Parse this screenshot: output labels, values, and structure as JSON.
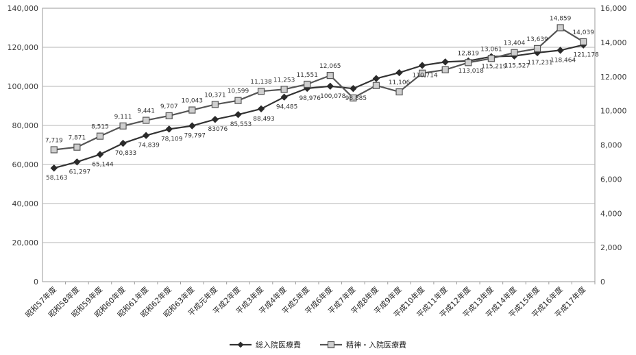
{
  "chart_data": {
    "type": "line",
    "title": "",
    "xlabel": "",
    "ylabel": "",
    "categories": [
      "昭和57年度",
      "昭和58年度",
      "昭和59年度",
      "昭和60年度",
      "昭和61年度",
      "昭和62年度",
      "昭和63年度",
      "平成元年度",
      "平成2年度",
      "平成3年度",
      "平成4年度",
      "平成5年度",
      "平成6年度",
      "平成7年度",
      "平成8年度",
      "平成9年度",
      "平成10年度",
      "平成11年度",
      "平成12年度",
      "平成13年度",
      "平成14年度",
      "平成15年度",
      "平成16年度",
      "平成17年度"
    ],
    "ylim_left": [
      0,
      140000
    ],
    "ylim_right": [
      0,
      16000
    ],
    "yticks_left": [
      "0",
      "20,000",
      "40,000",
      "60,000",
      "80,000",
      "100,000",
      "120,000",
      "140,000"
    ],
    "yticks_right": [
      "0",
      "2,000",
      "4,000",
      "6,000",
      "8,000",
      "10,000",
      "12,000",
      "14,000",
      "16,000"
    ],
    "grid": true,
    "legend_position": "bottom",
    "series": [
      {
        "name": "総入院医療費",
        "axis": "left",
        "color": "#333333",
        "marker": "diamond",
        "values": [
          58163,
          61297,
          65144,
          70833,
          74839,
          78109,
          79797,
          83076,
          85553,
          88493,
          94485,
          98976,
          100078,
          98885,
          104000,
          107000,
          110714,
          112500,
          113018,
          115219,
          115527,
          117231,
          118464,
          121178
        ],
        "labels": [
          "58,163",
          "61,297",
          "65,144",
          "70,833",
          "74,839",
          "78,109",
          "79,797",
          "83076",
          "85,553",
          "88,493",
          "94,485",
          "98,976",
          "100,078",
          "98,885",
          "",
          "",
          "110,714",
          "",
          "113,018",
          "115,219",
          "115,527",
          "117,231",
          "118,464",
          "121,178"
        ]
      },
      {
        "name": "精神・入院医療費",
        "axis": "right",
        "color": "#555555",
        "marker": "square",
        "values": [
          7719,
          7871,
          8515,
          9111,
          9441,
          9707,
          10043,
          10371,
          10599,
          11138,
          11253,
          11551,
          12065,
          10750,
          11480,
          11106,
          12200,
          12400,
          12819,
          13061,
          13404,
          13639,
          14859,
          14039
        ],
        "labels": [
          "7,719",
          "7,871",
          "8,515",
          "9,111",
          "9,441",
          "9,707",
          "10,043",
          "10,371",
          "10,599",
          "11,138",
          "11,253",
          "11,551",
          "12,065",
          "",
          "",
          "11,106",
          "",
          "",
          "12,819",
          "13,061",
          "13,404",
          "13,639",
          "14,859",
          "14,039"
        ]
      }
    ]
  }
}
